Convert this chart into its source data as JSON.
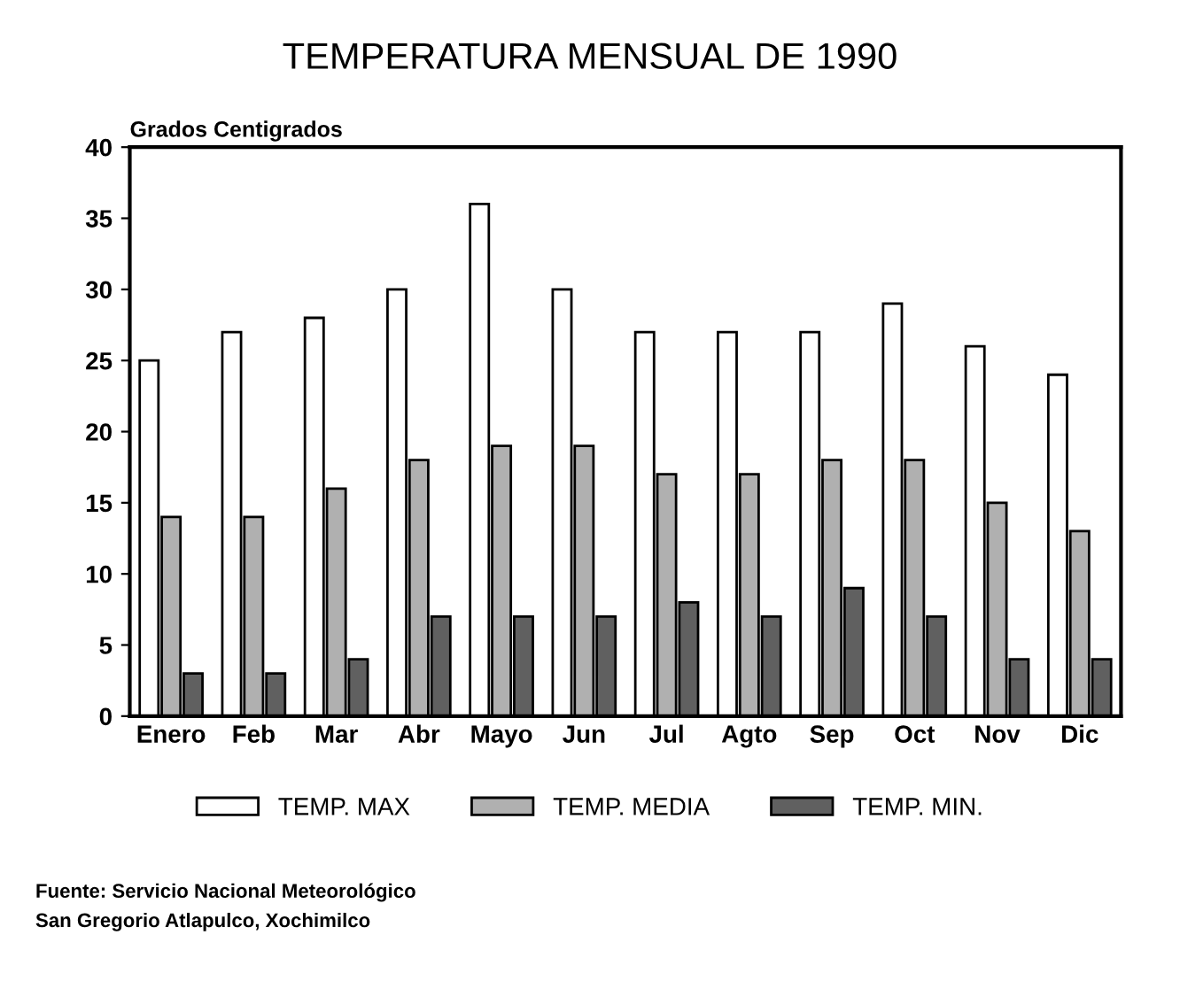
{
  "chart_data": {
    "type": "bar",
    "title": "TEMPERATURA MENSUAL DE 1990",
    "ylabel": "Grados Centigrados",
    "categories": [
      "Enero",
      "Feb",
      "Mar",
      "Abr",
      "Mayo",
      "Jun",
      "Jul",
      "Agto",
      "Sep",
      "Oct",
      "Nov",
      "Dic"
    ],
    "series": [
      {
        "name": "TEMP. MAX",
        "color": "#ffffff",
        "values": [
          25,
          27,
          28,
          30,
          36,
          30,
          27,
          27,
          27,
          29,
          26,
          24
        ]
      },
      {
        "name": "TEMP. MEDIA",
        "color": "#b0b0b0",
        "values": [
          14,
          14,
          16,
          18,
          19,
          19,
          17,
          17,
          18,
          18,
          15,
          13
        ]
      },
      {
        "name": "TEMP. MIN.",
        "color": "#606060",
        "values": [
          3,
          3,
          4,
          7,
          7,
          7,
          8,
          7,
          9,
          7,
          4,
          4
        ]
      }
    ],
    "ylim": [
      0,
      40
    ],
    "yticks": [
      0,
      5,
      10,
      15,
      20,
      25,
      30,
      35,
      40
    ],
    "grid": false,
    "legend": "bottom",
    "annotations": [
      "Fuente: Servicio Nacional Meteorológico",
      "San Gregorio Atlapulco, Xochimilco"
    ]
  }
}
